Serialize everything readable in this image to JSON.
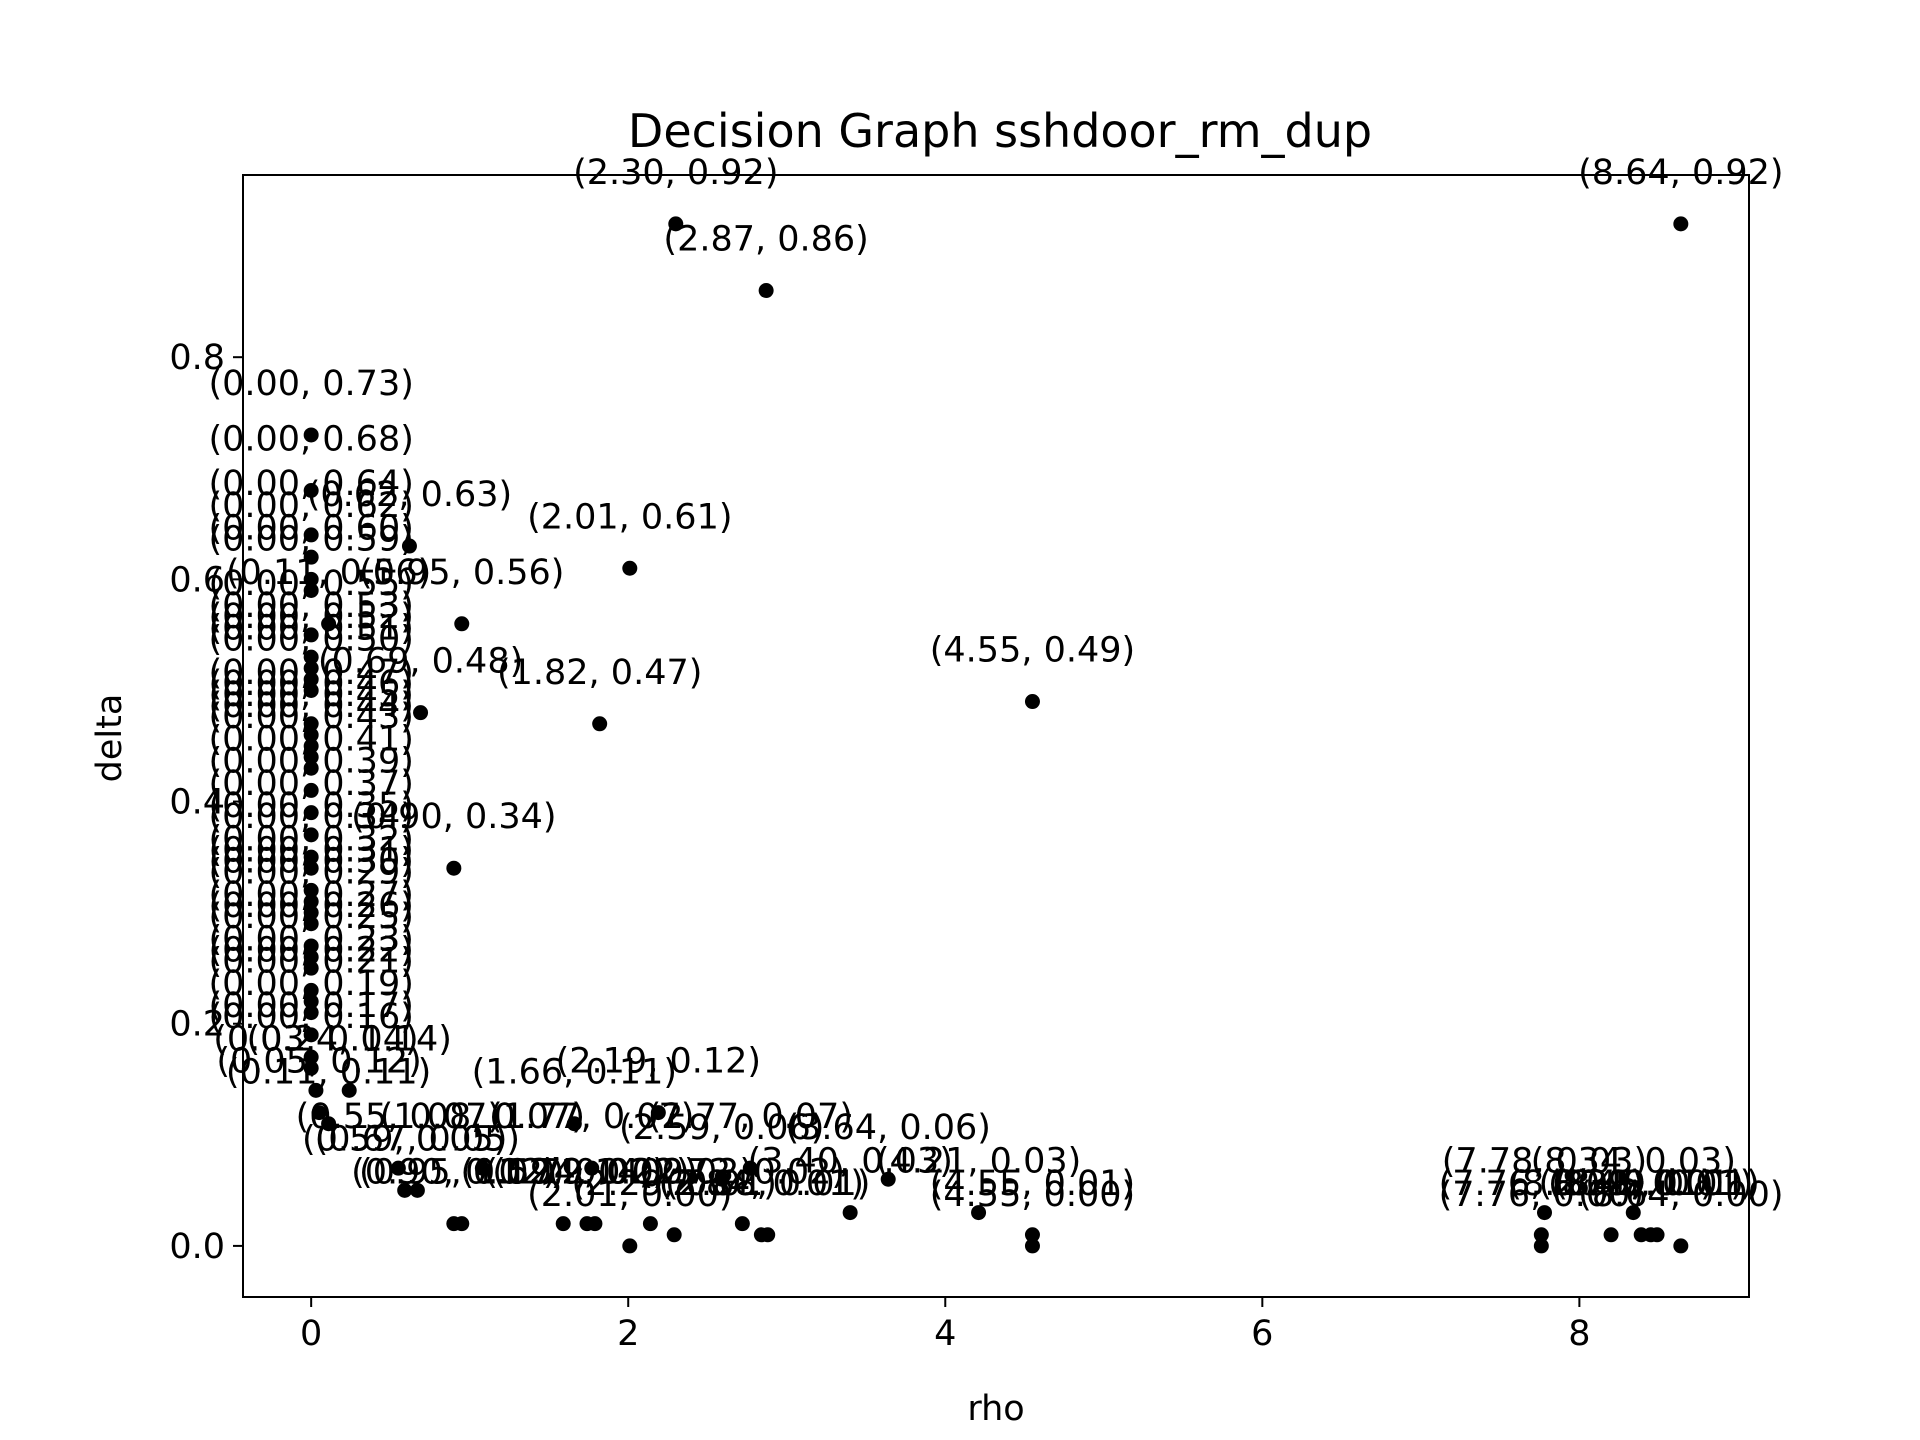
{
  "chart_data": {
    "type": "scatter",
    "title": "Decision Graph sshdoor_rm_dup",
    "xlabel": "rho",
    "ylabel": "delta",
    "xlim": [
      -0.43,
      9.07
    ],
    "ylim": [
      -0.046,
      0.964
    ],
    "xticks": [
      0,
      2,
      4,
      6,
      8
    ],
    "yticks": [
      0.0,
      0.2,
      0.4,
      0.6,
      0.8
    ],
    "xtick_labels": [
      "0",
      "2",
      "4",
      "6",
      "8"
    ],
    "ytick_labels": [
      "0.0",
      "0.2",
      "0.4",
      "0.6",
      "0.8"
    ],
    "grid": false,
    "marker_color": "#000000",
    "points": [
      {
        "x": 8.64,
        "y": 0.92
      },
      {
        "x": 2.3,
        "y": 0.92
      },
      {
        "x": 2.87,
        "y": 0.86
      },
      {
        "x": 0.0,
        "y": 0.73
      },
      {
        "x": 0.0,
        "y": 0.68
      },
      {
        "x": 0.0,
        "y": 0.64
      },
      {
        "x": 0.62,
        "y": 0.63
      },
      {
        "x": 0.0,
        "y": 0.62
      },
      {
        "x": 2.01,
        "y": 0.61
      },
      {
        "x": 0.0,
        "y": 0.6
      },
      {
        "x": 0.0,
        "y": 0.59
      },
      {
        "x": 0.11,
        "y": 0.56
      },
      {
        "x": 0.95,
        "y": 0.56
      },
      {
        "x": 0.0,
        "y": 0.55
      },
      {
        "x": 0.0,
        "y": 0.53
      },
      {
        "x": 0.0,
        "y": 0.52
      },
      {
        "x": 0.0,
        "y": 0.51
      },
      {
        "x": 0.0,
        "y": 0.5
      },
      {
        "x": 4.55,
        "y": 0.49
      },
      {
        "x": 0.69,
        "y": 0.48
      },
      {
        "x": 1.82,
        "y": 0.47
      },
      {
        "x": 0.0,
        "y": 0.47
      },
      {
        "x": 0.0,
        "y": 0.46
      },
      {
        "x": 0.0,
        "y": 0.45
      },
      {
        "x": 0.0,
        "y": 0.44
      },
      {
        "x": 0.0,
        "y": 0.43
      },
      {
        "x": 0.0,
        "y": 0.41
      },
      {
        "x": 0.0,
        "y": 0.39
      },
      {
        "x": 0.0,
        "y": 0.37
      },
      {
        "x": 0.0,
        "y": 0.35
      },
      {
        "x": 0.0,
        "y": 0.34
      },
      {
        "x": 0.9,
        "y": 0.34
      },
      {
        "x": 0.0,
        "y": 0.32
      },
      {
        "x": 0.0,
        "y": 0.31
      },
      {
        "x": 0.0,
        "y": 0.3
      },
      {
        "x": 0.0,
        "y": 0.29
      },
      {
        "x": 0.0,
        "y": 0.27
      },
      {
        "x": 0.0,
        "y": 0.26
      },
      {
        "x": 0.0,
        "y": 0.25
      },
      {
        "x": 0.0,
        "y": 0.23
      },
      {
        "x": 0.0,
        "y": 0.22
      },
      {
        "x": 0.0,
        "y": 0.21
      },
      {
        "x": 0.0,
        "y": 0.19
      },
      {
        "x": 0.0,
        "y": 0.17
      },
      {
        "x": 0.0,
        "y": 0.16
      },
      {
        "x": 0.03,
        "y": 0.14
      },
      {
        "x": 0.24,
        "y": 0.14
      },
      {
        "x": 0.11,
        "y": 0.11
      },
      {
        "x": 0.05,
        "y": 0.12
      },
      {
        "x": 1.66,
        "y": 0.11
      },
      {
        "x": 2.19,
        "y": 0.12
      },
      {
        "x": 1.08,
        "y": 0.07
      },
      {
        "x": 0.55,
        "y": 0.07
      },
      {
        "x": 1.77,
        "y": 0.07
      },
      {
        "x": 2.77,
        "y": 0.07
      },
      {
        "x": 2.59,
        "y": 0.06
      },
      {
        "x": 3.64,
        "y": 0.06
      },
      {
        "x": 3.4,
        "y": 0.03
      },
      {
        "x": 4.21,
        "y": 0.03
      },
      {
        "x": 0.59,
        "y": 0.05
      },
      {
        "x": 0.67,
        "y": 0.05
      },
      {
        "x": 0.9,
        "y": 0.02
      },
      {
        "x": 0.95,
        "y": 0.02
      },
      {
        "x": 1.59,
        "y": 0.02
      },
      {
        "x": 1.74,
        "y": 0.02
      },
      {
        "x": 1.79,
        "y": 0.02
      },
      {
        "x": 2.14,
        "y": 0.02
      },
      {
        "x": 2.29,
        "y": 0.01
      },
      {
        "x": 2.72,
        "y": 0.02
      },
      {
        "x": 2.84,
        "y": 0.01
      },
      {
        "x": 2.88,
        "y": 0.01
      },
      {
        "x": 2.01,
        "y": 0.0
      },
      {
        "x": 4.55,
        "y": 0.01
      },
      {
        "x": 4.55,
        "y": 0.0
      },
      {
        "x": 7.78,
        "y": 0.03
      },
      {
        "x": 7.76,
        "y": 0.01
      },
      {
        "x": 7.76,
        "y": 0.0
      },
      {
        "x": 8.2,
        "y": 0.01
      },
      {
        "x": 8.34,
        "y": 0.03
      },
      {
        "x": 8.39,
        "y": 0.01
      },
      {
        "x": 8.45,
        "y": 0.01
      },
      {
        "x": 8.49,
        "y": 0.01
      },
      {
        "x": 8.64,
        "y": 0.0
      }
    ],
    "annotations": [
      {
        "text": "(8.64, 0.92)",
        "x": 8.64,
        "y": 0.92
      },
      {
        "text": "(2.30, 0.92)",
        "x": 2.3,
        "y": 0.92
      },
      {
        "text": "(2.87, 0.86)",
        "x": 2.87,
        "y": 0.86
      },
      {
        "text": "(0.00, 0.73)",
        "x": 0.0,
        "y": 0.73
      },
      {
        "text": "(0.00, 0.68)",
        "x": 0.0,
        "y": 0.68
      },
      {
        "text": "(0.00, 0.64)",
        "x": 0.0,
        "y": 0.64
      },
      {
        "text": "(0.62, 0.63)",
        "x": 0.62,
        "y": 0.63
      },
      {
        "text": "(0.00, 0.62)",
        "x": 0.0,
        "y": 0.62
      },
      {
        "text": "(2.01, 0.61)",
        "x": 2.01,
        "y": 0.61
      },
      {
        "text": "(0.00, 0.60)",
        "x": 0.0,
        "y": 0.6
      },
      {
        "text": "(0.00, 0.59)",
        "x": 0.0,
        "y": 0.59
      },
      {
        "text": "(0.11, 0.56)",
        "x": 0.11,
        "y": 0.56
      },
      {
        "text": "(0.95, 0.56)",
        "x": 0.95,
        "y": 0.56
      },
      {
        "text": "(0.00, 0.55)",
        "x": 0.0,
        "y": 0.55
      },
      {
        "text": "(0.00, 0.53)",
        "x": 0.0,
        "y": 0.53
      },
      {
        "text": "(0.00, 0.52)",
        "x": 0.0,
        "y": 0.52
      },
      {
        "text": "(0.00, 0.51)",
        "x": 0.0,
        "y": 0.51
      },
      {
        "text": "(0.00, 0.50)",
        "x": 0.0,
        "y": 0.5
      },
      {
        "text": "(4.55, 0.49)",
        "x": 4.55,
        "y": 0.49
      },
      {
        "text": "(0.69, 0.48)",
        "x": 0.69,
        "y": 0.48
      },
      {
        "text": "(1.82, 0.47)",
        "x": 1.82,
        "y": 0.47
      },
      {
        "text": "(0.00, 0.47)",
        "x": 0.0,
        "y": 0.47
      },
      {
        "text": "(0.00, 0.46)",
        "x": 0.0,
        "y": 0.46
      },
      {
        "text": "(0.00, 0.45)",
        "x": 0.0,
        "y": 0.45
      },
      {
        "text": "(0.00, 0.44)",
        "x": 0.0,
        "y": 0.44
      },
      {
        "text": "(0.00, 0.43)",
        "x": 0.0,
        "y": 0.43
      },
      {
        "text": "(0.00, 0.41)",
        "x": 0.0,
        "y": 0.41
      },
      {
        "text": "(0.00, 0.39)",
        "x": 0.0,
        "y": 0.39
      },
      {
        "text": "(0.00, 0.37)",
        "x": 0.0,
        "y": 0.37
      },
      {
        "text": "(0.00, 0.35)",
        "x": 0.0,
        "y": 0.35
      },
      {
        "text": "(0.00, 0.34)",
        "x": 0.0,
        "y": 0.34
      },
      {
        "text": "(0.90, 0.34)",
        "x": 0.9,
        "y": 0.34
      },
      {
        "text": "(0.00, 0.32)",
        "x": 0.0,
        "y": 0.32
      },
      {
        "text": "(0.00, 0.31)",
        "x": 0.0,
        "y": 0.31
      },
      {
        "text": "(0.00, 0.30)",
        "x": 0.0,
        "y": 0.3
      },
      {
        "text": "(0.00, 0.29)",
        "x": 0.0,
        "y": 0.29
      },
      {
        "text": "(0.00, 0.27)",
        "x": 0.0,
        "y": 0.27
      },
      {
        "text": "(0.00, 0.26)",
        "x": 0.0,
        "y": 0.26
      },
      {
        "text": "(0.00, 0.25)",
        "x": 0.0,
        "y": 0.25
      },
      {
        "text": "(0.00, 0.23)",
        "x": 0.0,
        "y": 0.23
      },
      {
        "text": "(0.00, 0.22)",
        "x": 0.0,
        "y": 0.22
      },
      {
        "text": "(0.00, 0.21)",
        "x": 0.0,
        "y": 0.21
      },
      {
        "text": "(0.00, 0.19)",
        "x": 0.0,
        "y": 0.19
      },
      {
        "text": "(0.00, 0.17)",
        "x": 0.0,
        "y": 0.17
      },
      {
        "text": "(0.00, 0.16)",
        "x": 0.0,
        "y": 0.16
      },
      {
        "text": "(0.03, 0.14)",
        "x": 0.03,
        "y": 0.14
      },
      {
        "text": "(0.24, 0.14)",
        "x": 0.24,
        "y": 0.14
      },
      {
        "text": "(0.11, 0.11)",
        "x": 0.11,
        "y": 0.11
      },
      {
        "text": "(0.05, 0.12)",
        "x": 0.05,
        "y": 0.12
      },
      {
        "text": "(1.66, 0.11)",
        "x": 1.66,
        "y": 0.11
      },
      {
        "text": "(2.19, 0.12)",
        "x": 2.19,
        "y": 0.12
      },
      {
        "text": "(1.08, 0.07)",
        "x": 1.08,
        "y": 0.07
      },
      {
        "text": "(0.55, 0.07)",
        "x": 0.55,
        "y": 0.07
      },
      {
        "text": "(1.77, 0.07)",
        "x": 1.77,
        "y": 0.07
      },
      {
        "text": "(2.77, 0.07)",
        "x": 2.77,
        "y": 0.07
      },
      {
        "text": "(2.59, 0.06)",
        "x": 2.59,
        "y": 0.06
      },
      {
        "text": "(3.64, 0.06)",
        "x": 3.64,
        "y": 0.06
      },
      {
        "text": "(3.40, 0.03)",
        "x": 3.4,
        "y": 0.03
      },
      {
        "text": "(4.21, 0.03)",
        "x": 4.21,
        "y": 0.03
      },
      {
        "text": "(0.59, 0.05)",
        "x": 0.59,
        "y": 0.05
      },
      {
        "text": "(0.67, 0.05)",
        "x": 0.67,
        "y": 0.05
      },
      {
        "text": "(0.90, 0.02)",
        "x": 0.9,
        "y": 0.02
      },
      {
        "text": "(0.95, 0.02)",
        "x": 0.95,
        "y": 0.02
      },
      {
        "text": "(1.59, 0.02)",
        "x": 1.59,
        "y": 0.02
      },
      {
        "text": "(1.74, 0.02)",
        "x": 1.74,
        "y": 0.02
      },
      {
        "text": "(1.79, 0.02)",
        "x": 1.79,
        "y": 0.02
      },
      {
        "text": "(2.14, 0.02)",
        "x": 2.14,
        "y": 0.02
      },
      {
        "text": "(2.29, 0.01)",
        "x": 2.29,
        "y": 0.01
      },
      {
        "text": "(2.72, 0.02)",
        "x": 2.72,
        "y": 0.02
      },
      {
        "text": "(2.84, 0.01)",
        "x": 2.84,
        "y": 0.01
      },
      {
        "text": "(2.88, 0.01)",
        "x": 2.88,
        "y": 0.01
      },
      {
        "text": "(2.01, 0.00)",
        "x": 2.01,
        "y": 0.0
      },
      {
        "text": "(4.55, 0.01)",
        "x": 4.55,
        "y": 0.01
      },
      {
        "text": "(4.55, 0.00)",
        "x": 4.55,
        "y": 0.0
      },
      {
        "text": "(7.78, 0.03)",
        "x": 7.78,
        "y": 0.03
      },
      {
        "text": "(7.76, 0.01)",
        "x": 7.76,
        "y": 0.01
      },
      {
        "text": "(7.76, 0.00)",
        "x": 7.76,
        "y": 0.0
      },
      {
        "text": "(8.20, 0.01)",
        "x": 8.2,
        "y": 0.01
      },
      {
        "text": "(8.34, 0.03)",
        "x": 8.34,
        "y": 0.03
      },
      {
        "text": "(8.39, 0.01)",
        "x": 8.39,
        "y": 0.01
      },
      {
        "text": "(8.45, 0.01)",
        "x": 8.45,
        "y": 0.01
      },
      {
        "text": "(8.49, 0.01)",
        "x": 8.49,
        "y": 0.01
      },
      {
        "text": "(8.64, 0.00)",
        "x": 8.64,
        "y": 0.0
      }
    ]
  }
}
